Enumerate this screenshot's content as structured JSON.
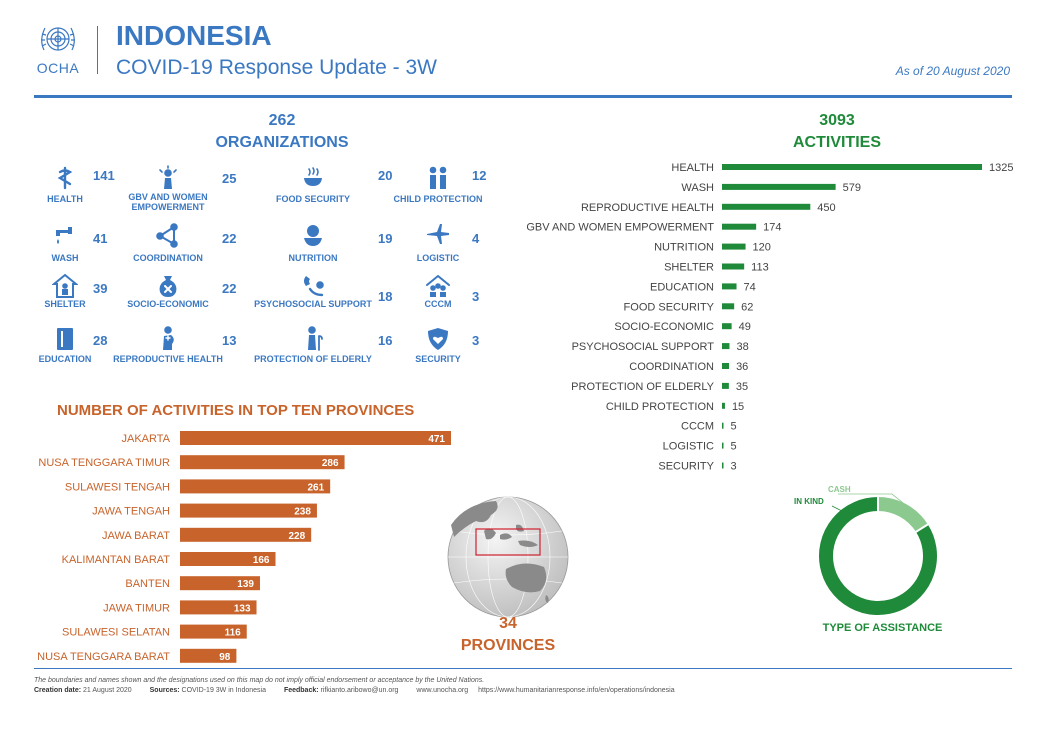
{
  "header": {
    "logo_text": "OCHA",
    "country": "INDONESIA",
    "subtitle": "COVID-19 Response Update - 3W",
    "as_of": "As of 20 August 2020"
  },
  "organizations": {
    "total": "262",
    "label": "ORGANIZATIONS",
    "sectors": [
      {
        "name": "HEALTH",
        "count": "141",
        "icon": "health-icon"
      },
      {
        "name": "GBV AND WOMEN EMPOWERMENT",
        "count": "25",
        "icon": "gbv-icon"
      },
      {
        "name": "FOOD SECURITY",
        "count": "20",
        "icon": "food-icon"
      },
      {
        "name": "CHILD PROTECTION",
        "count": "12",
        "icon": "child-protection-icon"
      },
      {
        "name": "WASH",
        "count": "41",
        "icon": "wash-icon"
      },
      {
        "name": "COORDINATION",
        "count": "22",
        "icon": "coordination-icon"
      },
      {
        "name": "NUTRITION",
        "count": "19",
        "icon": "nutrition-icon"
      },
      {
        "name": "LOGISTIC",
        "count": "4",
        "icon": "logistic-icon"
      },
      {
        "name": "SHELTER",
        "count": "39",
        "icon": "shelter-icon"
      },
      {
        "name": "SOCIO-ECONOMIC",
        "count": "22",
        "icon": "socio-economic-icon"
      },
      {
        "name": "PSYCHOSOCIAL SUPPORT",
        "count": "18",
        "icon": "psychosocial-icon"
      },
      {
        "name": "CCCM",
        "count": "3",
        "icon": "cccm-icon"
      },
      {
        "name": "EDUCATION",
        "count": "28",
        "icon": "education-icon"
      },
      {
        "name": "REPRODUCTIVE HEALTH",
        "count": "13",
        "icon": "reproductive-health-icon"
      },
      {
        "name": "PROTECTION OF ELDERLY",
        "count": "16",
        "icon": "elderly-icon"
      },
      {
        "name": "SECURITY",
        "count": "3",
        "icon": "security-icon"
      }
    ]
  },
  "activities": {
    "total": "3093",
    "label": "ACTIVITIES"
  },
  "provinces": {
    "title": "NUMBER OF ACTIVITIES IN TOP TEN PROVINCES",
    "total": "34",
    "label": "PROVINCES"
  },
  "assistance": {
    "title": "TYPE OF ASSISTANCE"
  },
  "colors": {
    "blue": "#3b78c2",
    "green": "#1f8a3a",
    "light_green": "#8cc98f",
    "orange": "#c8632b"
  },
  "chart_data": [
    {
      "type": "bar",
      "orientation": "horizontal",
      "categories": [
        "HEALTH",
        "WASH",
        "REPRODUCTIVE HEALTH",
        "GBV AND WOMEN EMPOWERMENT",
        "NUTRITION",
        "SHELTER",
        "EDUCATION",
        "FOOD SECURITY",
        "SOCIO-ECONOMIC",
        "PSYCHOSOCIAL SUPPORT",
        "COORDINATION",
        "PROTECTION OF ELDERLY",
        "CHILD PROTECTION",
        "CCCM",
        "LOGISTIC",
        "SECURITY"
      ],
      "values": [
        1325,
        579,
        450,
        174,
        120,
        113,
        74,
        62,
        49,
        38,
        36,
        35,
        15,
        5,
        5,
        3
      ],
      "color": "#1f8a3a"
    },
    {
      "type": "bar",
      "orientation": "horizontal",
      "title": "NUMBER OF ACTIVITIES IN TOP TEN PROVINCES",
      "categories": [
        "JAKARTA",
        "NUSA TENGGARA TIMUR",
        "SULAWESI TENGAH",
        "JAWA TENGAH",
        "JAWA BARAT",
        "KALIMANTAN BARAT",
        "BANTEN",
        "JAWA TIMUR",
        "SULAWESI SELATAN",
        "NUSA TENGGARA BARAT"
      ],
      "values": [
        471,
        286,
        261,
        238,
        228,
        166,
        139,
        133,
        116,
        98
      ],
      "color": "#c8632b"
    },
    {
      "type": "pie",
      "title": "TYPE OF ASSISTANCE",
      "categories": [
        "IN KIND",
        "CASH"
      ],
      "values": [
        84,
        16
      ],
      "colors": [
        "#1f8a3a",
        "#8cc98f"
      ]
    }
  ],
  "footer": {
    "disclaimer": "The boundaries and names shown and the designations used on this map do not imply official endorsement or acceptance by the United Nations.",
    "creation_label": "Creation date:",
    "creation_value": "21 August 2020",
    "sources_label": "Sources:",
    "sources_value": "COVID-19 3W in Indonesia",
    "feedback_label": "Feedback:",
    "feedback_value": "rifkianto.aribowo@un.org",
    "website": "www.unocha.org",
    "url": "https://www.humanitarianresponse.info/en/operations/indonesia"
  }
}
